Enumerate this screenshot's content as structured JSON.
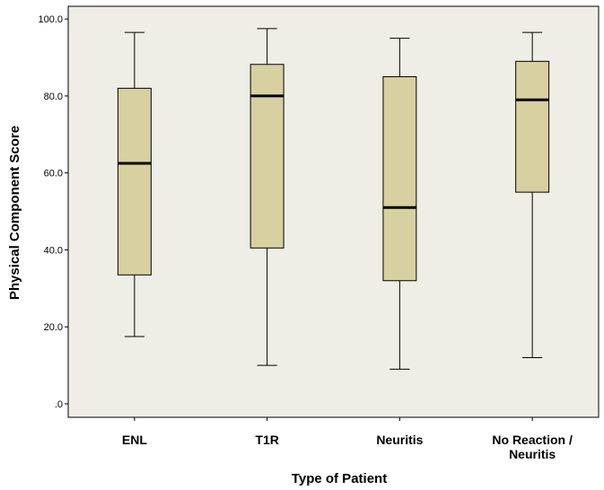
{
  "chart_data": {
    "type": "boxplot",
    "xlabel": "Type of Patient",
    "ylabel": "Physical Component Score",
    "ylim": [
      -3.5,
      103.3
    ],
    "y_ticks": [
      0,
      20,
      40,
      60,
      80,
      100
    ],
    "y_tick_labels": [
      ".0",
      "20.0",
      "40.0",
      "60.0",
      "80.0",
      "100.0"
    ],
    "grid": false,
    "categories": [
      {
        "lines": [
          "ENL"
        ]
      },
      {
        "lines": [
          "T1R"
        ]
      },
      {
        "lines": [
          "Neuritis"
        ]
      },
      {
        "lines": [
          "No Reaction /",
          "Neuritis"
        ]
      }
    ],
    "boxes": [
      {
        "min": 17.5,
        "q1": 33.5,
        "median": 62.5,
        "q3": 82.0,
        "max": 96.5
      },
      {
        "min": 10.0,
        "q1": 40.5,
        "median": 80.0,
        "q3": 88.2,
        "max": 97.5
      },
      {
        "min": 9.0,
        "q1": 32.0,
        "median": 51.0,
        "q3": 85.0,
        "max": 95.0
      },
      {
        "min": 12.0,
        "q1": 55.0,
        "median": 79.0,
        "q3": 89.0,
        "max": 96.5
      }
    ],
    "colors": {
      "plot_background": "#eeeee6",
      "box_fill": "#d7d0a1",
      "stroke": "#000000"
    }
  }
}
